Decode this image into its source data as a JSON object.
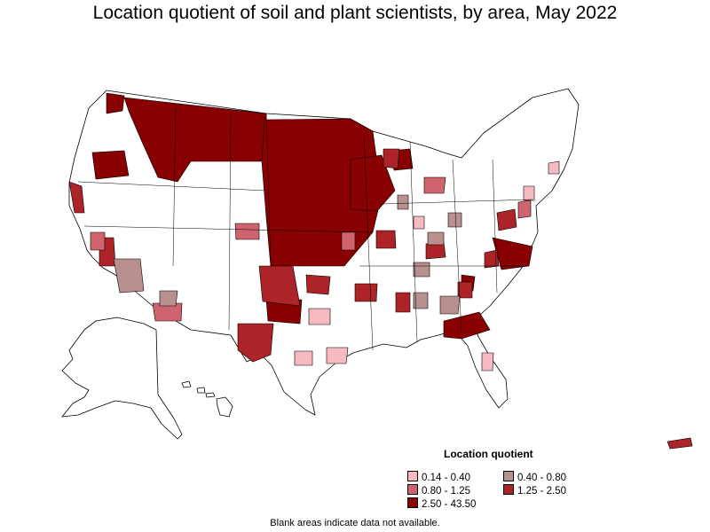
{
  "title": "Location quotient of soil and plant scientists, by area, May 2022",
  "legend": {
    "title": "Location quotient",
    "items": [
      {
        "label": "0.14 - 0.40",
        "color": "#f7b9c2"
      },
      {
        "label": "0.40 - 0.80",
        "color": "#b99090"
      },
      {
        "label": "0.80 - 1.25",
        "color": "#d0646e"
      },
      {
        "label": "1.25 - 2.50",
        "color": "#ac2328"
      },
      {
        "label": "2.50 - 43.50",
        "color": "#880000"
      }
    ]
  },
  "footnote": "Blank areas indicate data not available.",
  "colors": {
    "no_data": "#ffffff",
    "outline": "#000000"
  }
}
